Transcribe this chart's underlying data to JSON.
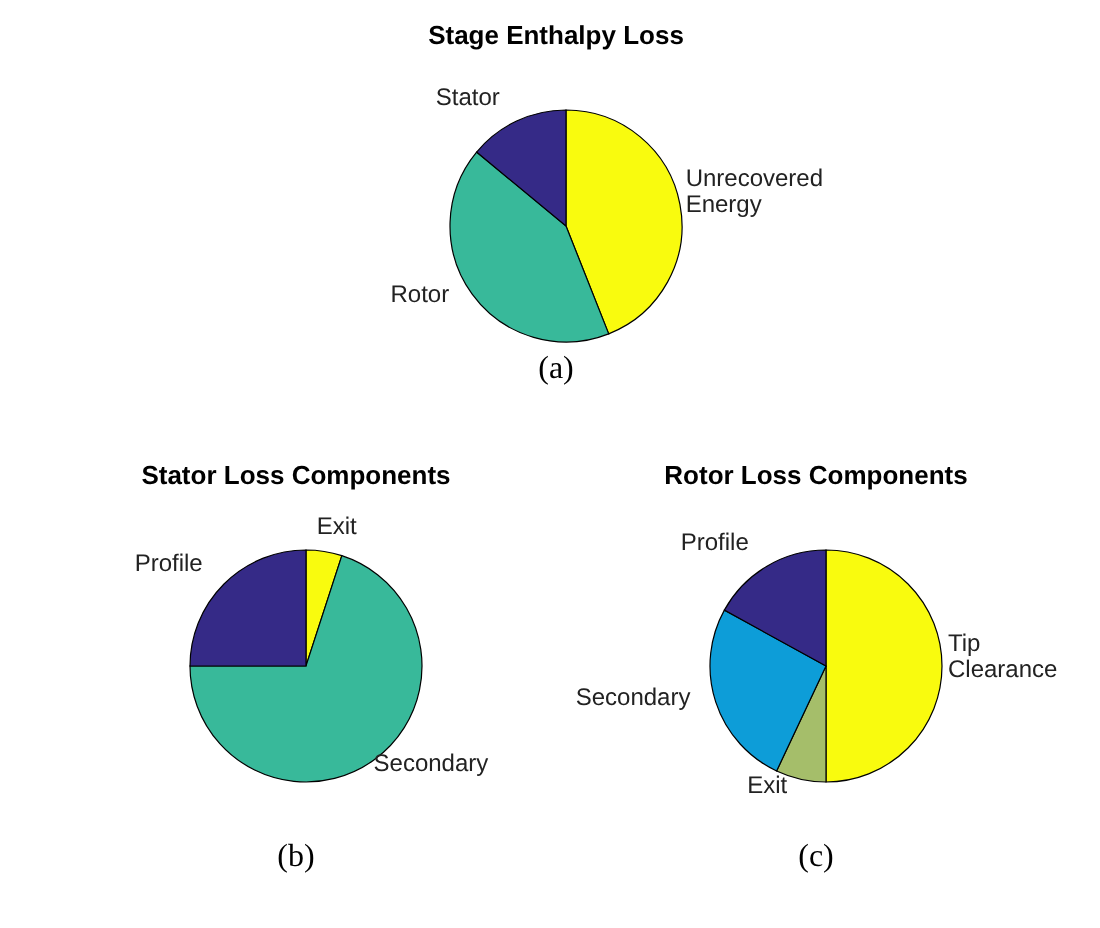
{
  "chart_data": [
    {
      "type": "pie",
      "title": "Stage Enthalpy Loss",
      "categories": [
        "Unrecovered Energy",
        "Rotor",
        "Stator"
      ],
      "values": [
        44,
        42,
        14
      ],
      "colors": [
        "#f9fb0e",
        "#38b99a",
        "#352a87"
      ],
      "annotations": [
        "(a)"
      ],
      "legend": false
    },
    {
      "type": "pie",
      "title": "Stator Loss Components",
      "categories": [
        "Exit",
        "Secondary",
        "Profile"
      ],
      "values": [
        5,
        70,
        25
      ],
      "colors": [
        "#f9fb0e",
        "#38b99a",
        "#352a87"
      ],
      "annotations": [
        "(b)"
      ],
      "legend": false
    },
    {
      "type": "pie",
      "title": "Rotor Loss Components",
      "categories": [
        "Tip Clearance",
        "Exit",
        "Secondary",
        "Profile"
      ],
      "values": [
        50,
        7,
        26,
        17
      ],
      "colors": [
        "#f9fb0e",
        "#a5be6a",
        "#0d9dd8",
        "#352a87"
      ],
      "annotations": [
        "(c)"
      ],
      "legend": false
    }
  ]
}
